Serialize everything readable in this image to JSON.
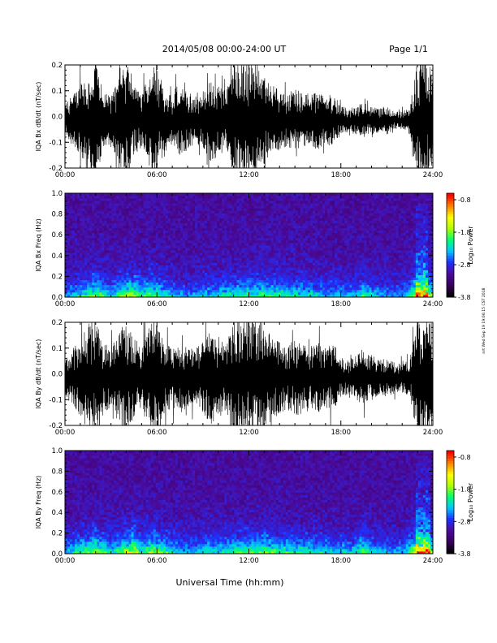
{
  "header": {
    "title": "2014/05/08  00:00-24:00 UT",
    "page": "Page 1/1"
  },
  "footer": {
    "xaxis_title": "Universal Time (hh:mm)",
    "stamp": "nrt Wed Sep 19 19:06:15 CST 2018"
  },
  "colorbar": {
    "label": "Log₁₀ Power",
    "ticks": [
      "-0.8",
      "-1.8",
      "-2.8",
      "-3.8"
    ],
    "range": [
      -3.8,
      -0.6
    ],
    "colors": [
      "#000000",
      "#3a0060",
      "#4b0a9a",
      "#2030ff",
      "#00c8ff",
      "#00ff70",
      "#b0ff00",
      "#ffff00",
      "#ff8000",
      "#ff0000"
    ]
  },
  "chart_data": [
    {
      "type": "line",
      "title": "",
      "ylabel": "IQA Bx dB/dt (nT/sec)",
      "xlabel": "",
      "xlim": [
        "00:00",
        "24:00"
      ],
      "ylim": [
        -0.2,
        0.2
      ],
      "xticks": [
        "00:00",
        "06:00",
        "12:00",
        "18:00",
        "24:00"
      ],
      "yticks": [
        "0.2",
        "0.1",
        "0.0",
        "-0.1",
        "-0.2"
      ],
      "envelope": {
        "hours": [
          0,
          0.5,
          1,
          1.5,
          2,
          2.5,
          3,
          3.5,
          4,
          4.5,
          5,
          5.5,
          6,
          6.5,
          7,
          7.5,
          8,
          8.5,
          9,
          9.5,
          10,
          10.5,
          11,
          11.5,
          12,
          12.5,
          13,
          13.5,
          14,
          14.5,
          15,
          15.5,
          16,
          16.5,
          17,
          17.5,
          18,
          18.5,
          19,
          19.5,
          20,
          20.5,
          21,
          21.5,
          22,
          22.5,
          23,
          23.5,
          24
        ],
        "amplitude": [
          0.05,
          0.09,
          0.12,
          0.15,
          0.2,
          0.1,
          0.08,
          0.14,
          0.2,
          0.12,
          0.09,
          0.16,
          0.2,
          0.1,
          0.08,
          0.12,
          0.1,
          0.08,
          0.1,
          0.14,
          0.12,
          0.1,
          0.2,
          0.2,
          0.2,
          0.2,
          0.15,
          0.12,
          0.1,
          0.09,
          0.11,
          0.1,
          0.09,
          0.1,
          0.08,
          0.09,
          0.05,
          0.04,
          0.05,
          0.06,
          0.05,
          0.04,
          0.05,
          0.03,
          0.03,
          0.05,
          0.2,
          0.2,
          0.2
        ]
      }
    },
    {
      "type": "heatmap",
      "title": "",
      "ylabel": "IQA Bx Freq (Hz)",
      "xlabel": "",
      "xlim": [
        "00:00",
        "24:00"
      ],
      "ylim": [
        0.0,
        1.0
      ],
      "xticks": [
        "00:00",
        "06:00",
        "12:00",
        "18:00",
        "24:00"
      ],
      "yticks": [
        "1.0",
        "0.8",
        "0.6",
        "0.4",
        "0.2",
        "0.0"
      ],
      "zlabel": "Log₁₀ Power",
      "zlim": [
        -3.8,
        -0.6
      ],
      "activity": {
        "hours": [
          0,
          1,
          1.5,
          2,
          3,
          4,
          4.5,
          5,
          5.5,
          6,
          7,
          8,
          9,
          10,
          11,
          12,
          13,
          14,
          15,
          16,
          17,
          18,
          19,
          19.5,
          20,
          21,
          22,
          22.5,
          23,
          23.3,
          23.6,
          24
        ],
        "level": [
          0.3,
          0.5,
          0.6,
          0.7,
          0.4,
          0.7,
          0.8,
          0.5,
          0.7,
          0.6,
          0.4,
          0.3,
          0.4,
          0.45,
          0.5,
          0.55,
          0.6,
          0.55,
          0.5,
          0.45,
          0.4,
          0.35,
          0.4,
          0.6,
          0.4,
          0.3,
          0.3,
          0.5,
          1.0,
          0.9,
          1.0,
          0.6
        ]
      }
    },
    {
      "type": "line",
      "title": "",
      "ylabel": "IQA By dB/dt (nT/sec)",
      "xlabel": "",
      "xlim": [
        "00:00",
        "24:00"
      ],
      "ylim": [
        -0.2,
        0.2
      ],
      "xticks": [
        "00:00",
        "06:00",
        "12:00",
        "18:00",
        "24:00"
      ],
      "yticks": [
        "0.2",
        "0.1",
        "0.0",
        "-0.1",
        "-0.2"
      ],
      "envelope": {
        "hours": [
          0,
          0.5,
          1,
          1.5,
          2,
          2.5,
          3,
          3.5,
          4,
          4.5,
          5,
          5.5,
          6,
          6.5,
          7,
          7.5,
          8,
          8.5,
          9,
          9.5,
          10,
          10.5,
          11,
          11.5,
          12,
          12.5,
          13,
          13.5,
          14,
          14.5,
          15,
          15.5,
          16,
          16.5,
          17,
          17.5,
          18,
          18.5,
          19,
          19.5,
          20,
          20.5,
          21,
          21.5,
          22,
          22.5,
          23,
          23.5,
          24
        ],
        "amplitude": [
          0.06,
          0.1,
          0.13,
          0.18,
          0.2,
          0.12,
          0.1,
          0.16,
          0.2,
          0.14,
          0.1,
          0.18,
          0.2,
          0.12,
          0.1,
          0.12,
          0.11,
          0.1,
          0.12,
          0.16,
          0.14,
          0.12,
          0.2,
          0.2,
          0.2,
          0.2,
          0.18,
          0.15,
          0.12,
          0.11,
          0.13,
          0.12,
          0.11,
          0.12,
          0.1,
          0.12,
          0.07,
          0.06,
          0.08,
          0.09,
          0.08,
          0.06,
          0.07,
          0.05,
          0.05,
          0.07,
          0.2,
          0.2,
          0.2
        ]
      }
    },
    {
      "type": "heatmap",
      "title": "",
      "ylabel": "IQA By Freq (Hz)",
      "xlabel": "Universal Time (hh:mm)",
      "xlim": [
        "00:00",
        "24:00"
      ],
      "ylim": [
        0.0,
        1.0
      ],
      "xticks": [
        "00:00",
        "06:00",
        "12:00",
        "18:00",
        "24:00"
      ],
      "yticks": [
        "1.0",
        "0.8",
        "0.6",
        "0.4",
        "0.2",
        "0.0"
      ],
      "zlabel": "Log₁₀ Power",
      "zlim": [
        -3.8,
        -0.6
      ],
      "activity": {
        "hours": [
          0,
          1,
          1.5,
          2,
          3,
          4,
          4.5,
          5,
          5.5,
          6,
          7,
          8,
          9,
          10,
          11,
          12,
          13,
          14,
          15,
          16,
          17,
          18,
          19,
          19.5,
          20,
          21,
          22,
          22.5,
          23,
          23.3,
          23.6,
          24
        ],
        "level": [
          0.35,
          0.55,
          0.65,
          0.75,
          0.45,
          0.75,
          0.85,
          0.55,
          0.75,
          0.7,
          0.45,
          0.35,
          0.45,
          0.5,
          0.55,
          0.6,
          0.65,
          0.6,
          0.55,
          0.5,
          0.45,
          0.4,
          0.45,
          0.65,
          0.45,
          0.35,
          0.35,
          0.55,
          1.0,
          0.95,
          1.0,
          0.65
        ]
      }
    }
  ]
}
